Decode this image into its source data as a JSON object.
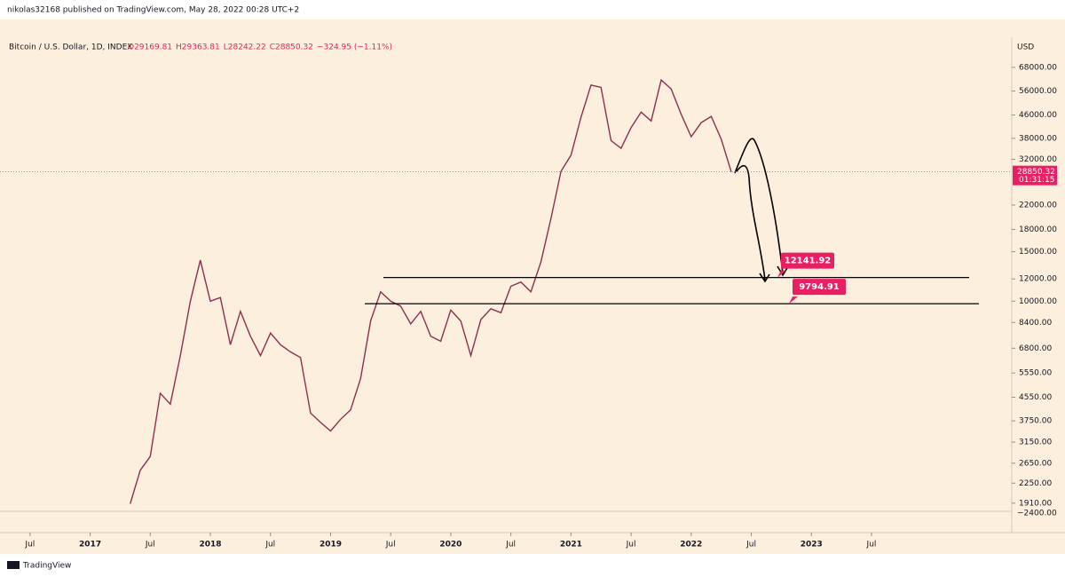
{
  "header": {
    "publisher": "nikolas32168 published on TradingView.com, May 28, 2022 00:28 UTC+2",
    "footer": "TradingView"
  },
  "chart_data": {
    "type": "line",
    "title": "Bitcoin / U.S. Dollar, 1D, INDEX",
    "ohlc": [
      "O29169.81",
      "H29363.81",
      "L28242.22",
      "C28850.32",
      "−324.95 (−1.11%)"
    ],
    "y_unit": "USD",
    "log_scale": true,
    "color": "#8c2f52",
    "x": [
      "2017-05",
      "2017-06",
      "2017-07",
      "2017-08",
      "2017-09",
      "2017-10",
      "2017-11",
      "2017-12",
      "2018-01",
      "2018-02",
      "2018-03",
      "2018-04",
      "2018-05",
      "2018-06",
      "2018-07",
      "2018-08",
      "2018-09",
      "2018-10",
      "2018-11",
      "2018-12",
      "2019-01",
      "2019-02",
      "2019-03",
      "2019-04",
      "2019-05",
      "2019-06",
      "2019-07",
      "2019-08",
      "2019-09",
      "2019-10",
      "2019-11",
      "2019-12",
      "2020-01",
      "2020-02",
      "2020-03",
      "2020-04",
      "2020-05",
      "2020-06",
      "2020-07",
      "2020-08",
      "2020-09",
      "2020-10",
      "2020-11",
      "2020-12",
      "2021-01",
      "2021-02",
      "2021-03",
      "2021-04",
      "2021-05",
      "2021-06",
      "2021-07",
      "2021-08",
      "2021-09",
      "2021-10",
      "2021-11",
      "2021-12",
      "2022-01",
      "2022-02",
      "2022-03",
      "2022-04",
      "2022-05"
    ],
    "values": [
      1900,
      2500,
      2800,
      4700,
      4300,
      6400,
      10000,
      14000,
      10000,
      10300,
      7000,
      9200,
      7500,
      6400,
      7700,
      7000,
      6600,
      6300,
      4000,
      3700,
      3450,
      3800,
      4100,
      5300,
      8500,
      10800,
      10000,
      9600,
      8300,
      9200,
      7500,
      7200,
      9300,
      8500,
      6400,
      8600,
      9400,
      9100,
      11300,
      11700,
      10800,
      13800,
      19700,
      29000,
      33100,
      45200,
      58800,
      57700,
      37300,
      35000,
      41500,
      47100,
      43800,
      61300,
      57000,
      46300,
      38500,
      43200,
      45500,
      37700,
      28850.32
    ],
    "last_price": {
      "value": 28850.32,
      "label": "28850.32"
    },
    "countdown": "01:31:15",
    "levels": [
      {
        "value": 12141.92,
        "label": "12141.92"
      },
      {
        "value": 9794.91,
        "label": "9794.91"
      }
    ],
    "xlim": [
      "2016-04",
      "2024-09"
    ],
    "xticks": [
      {
        "value": "2016-07",
        "label": "Jul"
      },
      {
        "value": "2017-01",
        "label": "2017"
      },
      {
        "value": "2017-07",
        "label": "Jul"
      },
      {
        "value": "2018-01",
        "label": "2018"
      },
      {
        "value": "2018-07",
        "label": "Jul"
      },
      {
        "value": "2019-01",
        "label": "2019"
      },
      {
        "value": "2019-07",
        "label": "Jul"
      },
      {
        "value": "2020-01",
        "label": "2020"
      },
      {
        "value": "2020-07",
        "label": "Jul"
      },
      {
        "value": "2021-01",
        "label": "2021"
      },
      {
        "value": "2021-07",
        "label": "Jul"
      },
      {
        "value": "2022-01",
        "label": "2022"
      },
      {
        "value": "2022-07",
        "label": "Jul"
      },
      {
        "value": "2023-01",
        "label": "2023"
      },
      {
        "value": "2023-07",
        "label": "Jul"
      }
    ],
    "ylim": [
      1500,
      87000
    ],
    "yticks": [
      {
        "value": 68000,
        "label": "68000.00"
      },
      {
        "value": 56000,
        "label": "56000.00"
      },
      {
        "value": 46000,
        "label": "46000.00"
      },
      {
        "value": 38000,
        "label": "38000.00"
      },
      {
        "value": 32000,
        "label": "32000.00"
      },
      {
        "value": 22000,
        "label": "22000.00"
      },
      {
        "value": 18000,
        "label": "18000.00"
      },
      {
        "value": 15000,
        "label": "15000.00"
      },
      {
        "value": 12000,
        "label": "12000.00"
      },
      {
        "value": 10000,
        "label": "10000.00"
      },
      {
        "value": 8400,
        "label": "8400.00"
      },
      {
        "value": 6800,
        "label": "6800.00"
      },
      {
        "value": 5550,
        "label": "5550.00"
      },
      {
        "value": 4550,
        "label": "4550.00"
      },
      {
        "value": 3750,
        "label": "3750.00"
      },
      {
        "value": 3150,
        "label": "3150.00"
      },
      {
        "value": 2650,
        "label": "2650.00"
      },
      {
        "value": 2250,
        "label": "2250.00"
      },
      {
        "value": 1910,
        "label": "1910.00"
      }
    ],
    "bottom_label": "−2400.00"
  }
}
